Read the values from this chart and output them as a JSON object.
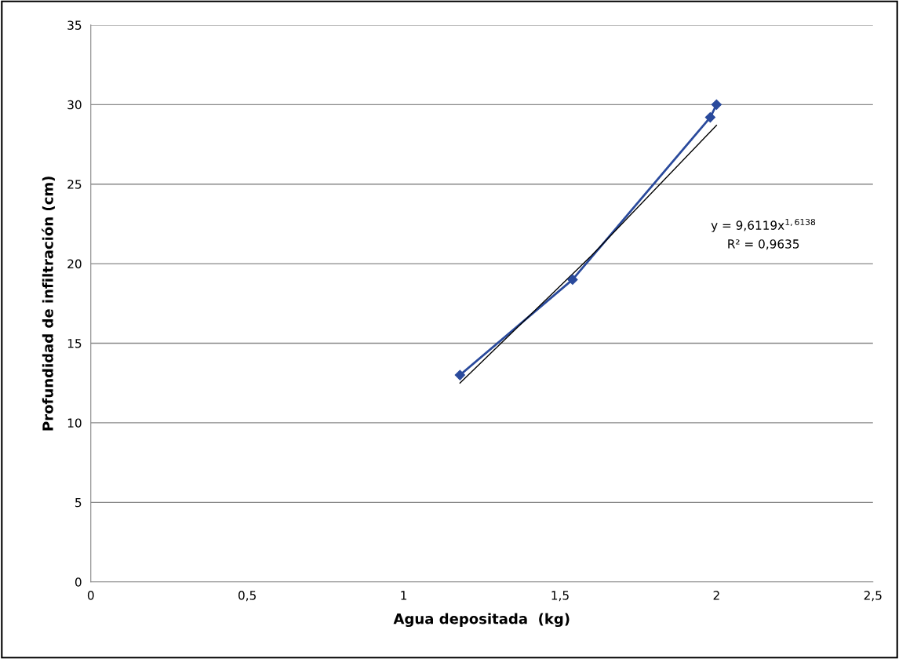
{
  "chart_data": {
    "type": "line",
    "xlabel": "Agua depositada  (kg)",
    "ylabel": "Profundidad de infiltración (cm)",
    "xlim": [
      0,
      2.5
    ],
    "xticks": [
      0,
      {
        "value": 0.5,
        "label": "0,5"
      },
      1,
      {
        "value": 1.5,
        "label": "1,5"
      },
      2,
      {
        "value": 2.5,
        "label": "2,5"
      }
    ],
    "ylim": [
      0,
      35
    ],
    "yticks": [
      0,
      5,
      10,
      15,
      20,
      25,
      30,
      35
    ],
    "grid": "y",
    "legend": false,
    "series": [
      {
        "marker": "diamond",
        "color": "#2a4a9c",
        "x": [
          1.18,
          1.54,
          1.98,
          2.0
        ],
        "values": [
          13,
          19,
          29.2,
          30
        ]
      },
      {
        "type": "line",
        "marker": "none",
        "color": "#000000",
        "x": [
          1.18,
          1.6,
          2.0
        ],
        "values": [
          12.5,
          20.5,
          28.7
        ]
      }
    ],
    "annotations": [
      "y = 9,6119x$^{1,6138}$",
      "R² = 0,9635"
    ]
  }
}
